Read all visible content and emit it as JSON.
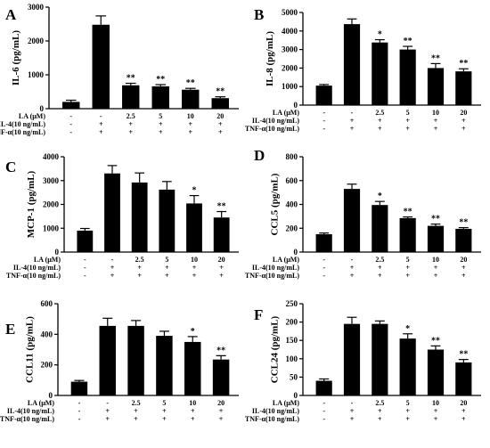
{
  "treatment_labels": [
    "LA (μM)",
    "IL-4(10 ng/mL)",
    "TNF-α(10 ng/mL)"
  ],
  "treatment_rows": [
    [
      "-",
      "-",
      "2.5",
      "5",
      "10",
      "20"
    ],
    [
      "-",
      "+",
      "+",
      "+",
      "+",
      "+"
    ],
    [
      "-",
      "+",
      "+",
      "+",
      "+",
      "+"
    ]
  ],
  "colors": {
    "bar": "#000000",
    "axis": "#000000",
    "background": "#ffffff"
  },
  "chart_data": [
    {
      "panel": "A",
      "type": "bar",
      "ylabel": "IL-6 (pg/mL)",
      "ylim": [
        0,
        3000
      ],
      "yticks": [
        0,
        1000,
        2000,
        3000
      ],
      "values": [
        200,
        2480,
        690,
        660,
        560,
        310
      ],
      "errors": [
        50,
        260,
        60,
        50,
        40,
        40
      ],
      "significance": [
        "",
        "",
        "**",
        "**",
        "**",
        "**"
      ]
    },
    {
      "panel": "B",
      "type": "bar",
      "ylabel": "IL-8 (pg/mL)",
      "ylim": [
        0,
        5000
      ],
      "yticks": [
        0,
        1000,
        2000,
        3000,
        4000,
        5000
      ],
      "values": [
        1050,
        4370,
        3380,
        3000,
        2000,
        1820
      ],
      "errors": [
        60,
        280,
        150,
        170,
        240,
        140
      ],
      "significance": [
        "",
        "",
        "*",
        "**",
        "**",
        "**"
      ]
    },
    {
      "panel": "C",
      "type": "bar",
      "ylabel": "MCP-1 (pg/mL)",
      "ylim": [
        0,
        4000
      ],
      "yticks": [
        0,
        1000,
        2000,
        3000,
        4000
      ],
      "values": [
        900,
        3300,
        2920,
        2620,
        2040,
        1450
      ],
      "errors": [
        90,
        330,
        400,
        340,
        330,
        250
      ],
      "significance": [
        "",
        "",
        "",
        "",
        "*",
        "**"
      ]
    },
    {
      "panel": "D",
      "type": "bar",
      "ylabel": "CCL5 (pg/mL)",
      "ylim": [
        0,
        800
      ],
      "yticks": [
        0,
        200,
        400,
        600,
        800
      ],
      "values": [
        150,
        530,
        395,
        285,
        220,
        195
      ],
      "errors": [
        10,
        40,
        30,
        10,
        15,
        10
      ],
      "significance": [
        "",
        "",
        "*",
        "**",
        "**",
        "**"
      ]
    },
    {
      "panel": "E",
      "type": "bar",
      "ylabel": "CCL11 (pg/mL)",
      "ylim": [
        0,
        600
      ],
      "yticks": [
        0,
        200,
        400,
        600
      ],
      "values": [
        90,
        455,
        455,
        390,
        350,
        235
      ],
      "errors": [
        8,
        50,
        35,
        30,
        35,
        25
      ],
      "significance": [
        "",
        "",
        "",
        "",
        "*",
        "**"
      ]
    },
    {
      "panel": "F",
      "type": "bar",
      "ylabel": "CCL24 (pg/mL)",
      "ylim": [
        0,
        250
      ],
      "yticks": [
        0,
        50,
        100,
        150,
        200,
        250
      ],
      "values": [
        40,
        195,
        195,
        155,
        125,
        90
      ],
      "errors": [
        5,
        18,
        8,
        13,
        10,
        8
      ],
      "significance": [
        "",
        "",
        "",
        "*",
        "**",
        "**"
      ]
    }
  ]
}
